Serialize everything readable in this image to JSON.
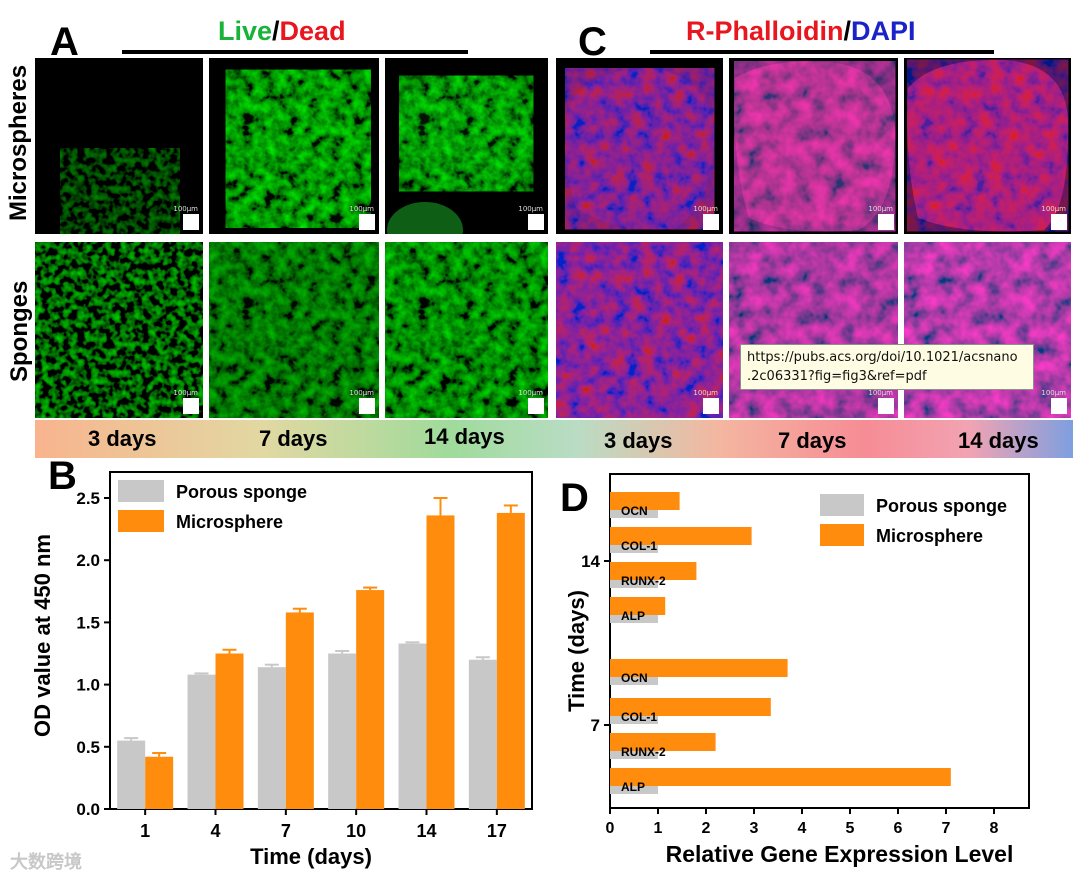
{
  "panels": {
    "A": "A",
    "B": "B",
    "C": "C",
    "D": "D"
  },
  "headers": {
    "live": "Live",
    "slash1": "/",
    "dead": "Dead",
    "phalloidin": "R-Phalloidin",
    "slash2": "/",
    "dapi": "DAPI"
  },
  "row_labels": {
    "microspheres": "Microspheres",
    "sponges": "Sponges"
  },
  "scale_text": "100μm",
  "day_labels": [
    "3 days",
    "7 days",
    "14 days",
    "3 days",
    "7 days",
    "14 days"
  ],
  "tooltip": {
    "line1": "https://pubs.acs.org/doi/10.1021/acsnano",
    "line2": ".2c06331?fig=fig3&ref=pdf"
  },
  "watermark": "大数跨境",
  "colors": {
    "live": "#19b33a",
    "dead": "#e8161e",
    "phalloidin": "#e8161e",
    "dapi": "#1a22c8",
    "sponge": "#c8c8c8",
    "microsphere": "#ff8c0c"
  },
  "chart_data": [
    {
      "type": "bar",
      "panel": "B",
      "categories": [
        "1",
        "4",
        "7",
        "10",
        "14",
        "17"
      ],
      "series": [
        {
          "name": "Porous sponge",
          "values": [
            0.55,
            1.08,
            1.14,
            1.25,
            1.33,
            1.2
          ],
          "errors": [
            0.02,
            0.01,
            0.02,
            0.02,
            0.01,
            0.02
          ]
        },
        {
          "name": "Microsphere",
          "values": [
            0.42,
            1.25,
            1.58,
            1.76,
            2.36,
            2.38
          ],
          "errors": [
            0.03,
            0.03,
            0.03,
            0.02,
            0.14,
            0.06
          ]
        }
      ],
      "xlabel": "Time (days)",
      "ylabel": "OD value at 450 nm",
      "ylim": [
        0,
        2.6
      ],
      "yticks": [
        "0.0",
        "0.5",
        "1.0",
        "1.5",
        "2.0",
        "2.5"
      ],
      "legend": "top-left",
      "grid": false
    },
    {
      "type": "bar",
      "orientation": "horizontal",
      "panel": "D",
      "groups": [
        {
          "label": "14",
          "genes": [
            "OCN",
            "COL-1",
            "RUNX-2",
            "ALP"
          ],
          "sponge": [
            1,
            1,
            1,
            1
          ],
          "microsphere": [
            1.45,
            2.95,
            1.8,
            1.15
          ]
        },
        {
          "label": "7",
          "genes": [
            "OCN",
            "COL-1",
            "RUNX-2",
            "ALP"
          ],
          "sponge": [
            1,
            1,
            1,
            1
          ],
          "microsphere": [
            3.7,
            3.35,
            2.2,
            7.1
          ]
        }
      ],
      "series_names": [
        "Porous sponge",
        "Microsphere"
      ],
      "xlabel": "Relative Gene Expression Level",
      "ylabel": "Time (days)",
      "xlim": [
        0,
        8.7
      ],
      "xticks": [
        "0",
        "1",
        "2",
        "3",
        "4",
        "5",
        "6",
        "7",
        "8"
      ],
      "legend": "top-right",
      "grid": false
    }
  ]
}
